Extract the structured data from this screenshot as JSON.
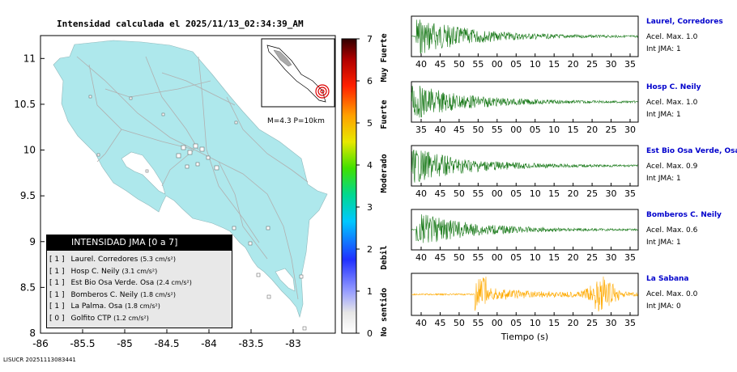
{
  "title": "Intensidad calculada el 2025/11/13_02:34:39_AM",
  "footer": "LISUCR 20251113083441",
  "map": {
    "x_ticks": [
      "-86",
      "-85.5",
      "-85",
      "-84.5",
      "-84",
      "-83.5",
      "-83"
    ],
    "y_ticks": [
      "11",
      "10.5",
      "10",
      "9.5",
      "9",
      "8.5",
      "8"
    ],
    "x_range": [
      -86,
      -82.5
    ],
    "y_range": [
      8,
      11.25
    ],
    "inset_caption": "M=4.3 P=10km",
    "colors": {
      "land": "#aee8ec",
      "sea": "#ffffff",
      "roads": "#b0b0b0",
      "stations": "#000000"
    }
  },
  "legend": {
    "title": "INTENSIDAD JMA [0 a 7]",
    "items": [
      {
        "jma": "[ 1 ]",
        "name": "Laurel. Corredores",
        "value": "(5.3 cm/s²)"
      },
      {
        "jma": "[ 1 ]",
        "name": "Hosp C. Neily",
        "value": "(3.1 cm/s²)"
      },
      {
        "jma": "[ 1 ]",
        "name": "Est Bio Osa Verde. Osa",
        "value": "(2.4 cm/s²)"
      },
      {
        "jma": "[ 1 ]",
        "name": "Bomberos C. Neily",
        "value": "(1.8 cm/s²)"
      },
      {
        "jma": "[ 1 ]",
        "name": "La Palma. Osa",
        "value": "(1.8 cm/s²)"
      },
      {
        "jma": "[ 0 ]",
        "name": "Golfito CTP",
        "value": "(1.2 cm/s²)"
      }
    ]
  },
  "colorbar": {
    "ticks": [
      "0",
      "1",
      "2",
      "3",
      "4",
      "5",
      "6",
      "7"
    ],
    "categories": [
      "No sentido",
      "Debil",
      "Moderado",
      "Fuerte",
      "Muy Fuerte"
    ]
  },
  "chart_data": [
    {
      "type": "line",
      "station": "Laurel, Corredores",
      "acel_max": "Acel. Max. 1.0",
      "int_jma": "Int JMA: 1",
      "color": "#1a7a1a",
      "x_ticks": [
        "40",
        "45",
        "50",
        "55",
        "00",
        "05",
        "10",
        "15",
        "20",
        "25",
        "30",
        "35"
      ]
    },
    {
      "type": "line",
      "station": "Hosp C. Neily",
      "acel_max": "Acel. Max. 1.0",
      "int_jma": "Int JMA: 1",
      "color": "#1a7a1a",
      "x_ticks": [
        "35",
        "40",
        "45",
        "50",
        "55",
        "00",
        "05",
        "10",
        "15",
        "20",
        "25",
        "30"
      ]
    },
    {
      "type": "line",
      "station": "Est Bio Osa Verde, Osa",
      "acel_max": "Acel. Max. 0.9",
      "int_jma": "Int JMA: 1",
      "color": "#1a7a1a",
      "x_ticks": [
        "40",
        "45",
        "50",
        "55",
        "00",
        "05",
        "10",
        "15",
        "20",
        "25",
        "30",
        "35"
      ]
    },
    {
      "type": "line",
      "station": "Bomberos C. Neily",
      "acel_max": "Acel. Max. 0.6",
      "int_jma": "Int JMA: 1",
      "color": "#1a7a1a",
      "x_ticks": [
        "40",
        "45",
        "50",
        "55",
        "00",
        "05",
        "10",
        "15",
        "20",
        "25",
        "30",
        "35"
      ]
    },
    {
      "type": "line",
      "station": "La Sabana",
      "acel_max": "Acel. Max. 0.0",
      "int_jma": "Int JMA: 0",
      "color": "#ffaa00",
      "x_ticks": [
        "40",
        "45",
        "50",
        "55",
        "00",
        "05",
        "10",
        "15",
        "20",
        "25",
        "30",
        "35"
      ],
      "xlabel": "Tiempo (s)"
    }
  ]
}
